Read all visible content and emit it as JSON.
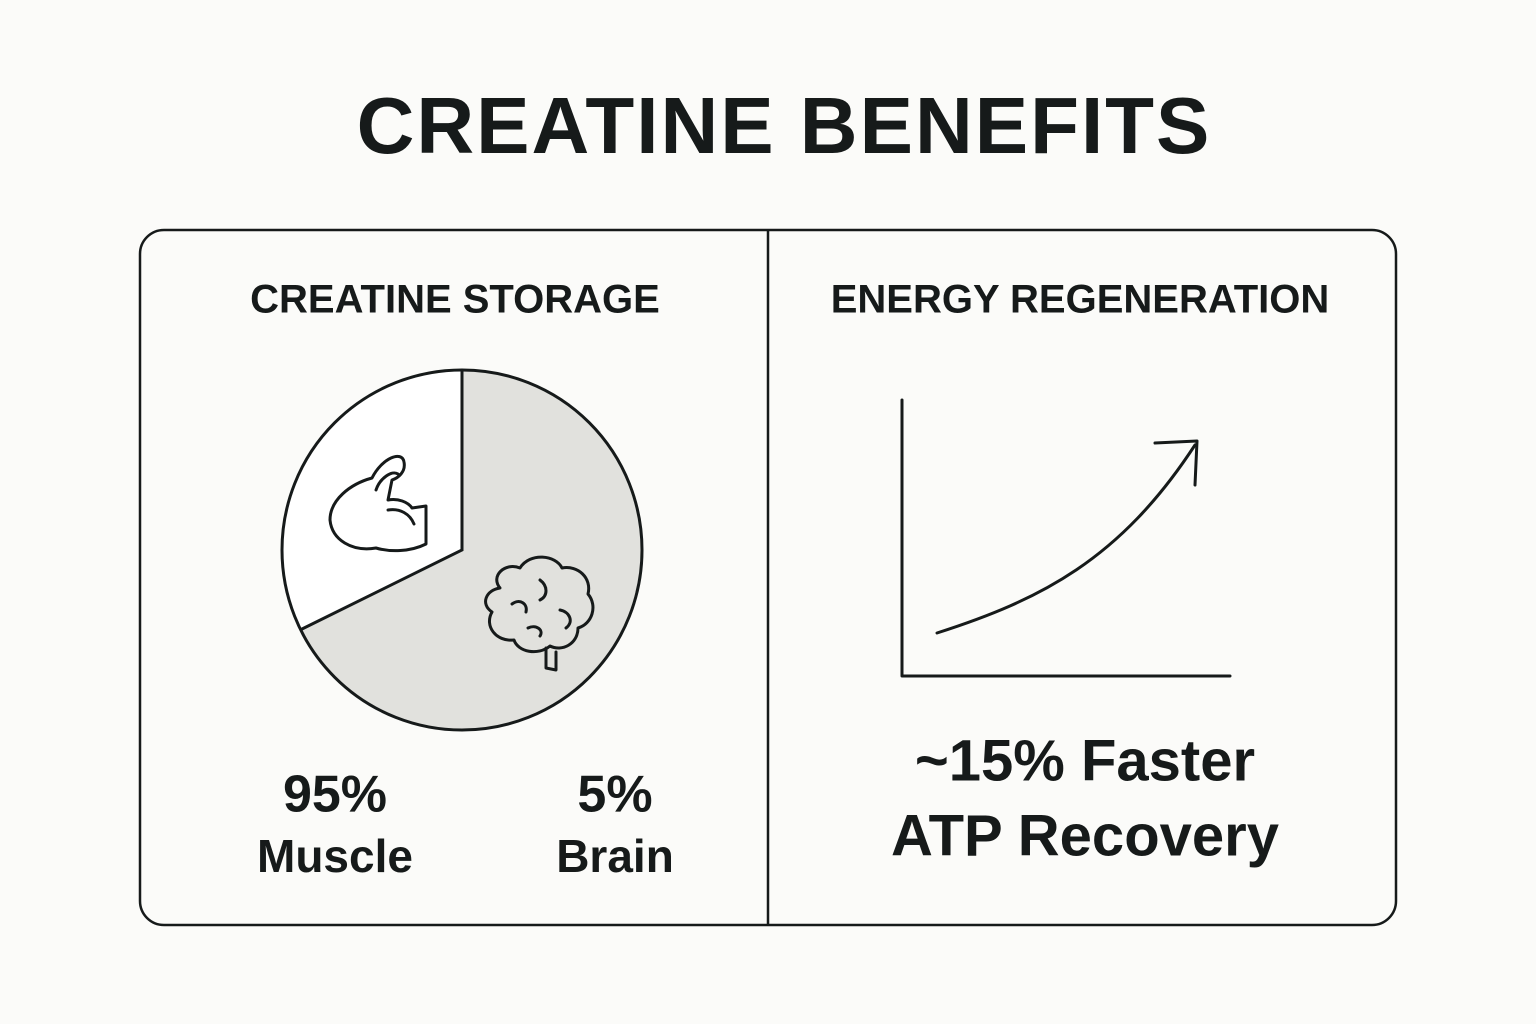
{
  "title": "CREATINE BENEFITS",
  "panels": [
    {
      "title": "CREATINE STORAGE",
      "stats": [
        {
          "value": "95%",
          "label": "Muscle"
        },
        {
          "value": "5%",
          "label": "Brain"
        }
      ]
    },
    {
      "title": "ENERGY REGENERATION",
      "caption": [
        "~15% Faster",
        "ATP Recovery"
      ]
    }
  ]
}
